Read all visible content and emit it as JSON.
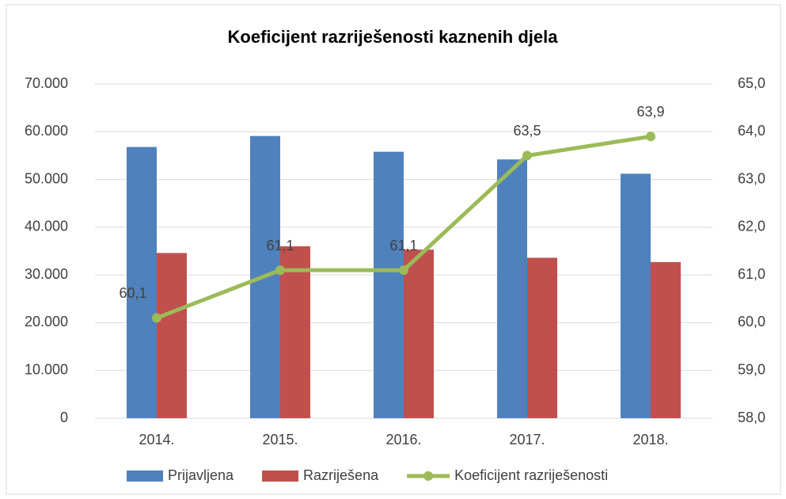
{
  "chart_data": {
    "type": "bar_line",
    "title": "Koeficijent razriješenosti kaznenih djela",
    "categories": [
      "2014.",
      "2015.",
      "2016.",
      "2017.",
      "2018."
    ],
    "series": [
      {
        "name": "Prijavljena",
        "color": "#4f81bd",
        "type": "bar",
        "values": [
          56800,
          59100,
          55800,
          54200,
          51200
        ]
      },
      {
        "name": "Razriješena",
        "color": "#c0504d",
        "type": "bar",
        "values": [
          34600,
          36000,
          35300,
          33600,
          32700
        ]
      },
      {
        "name": "Koeficijent razriješenosti",
        "color": "#9bbb59",
        "type": "line",
        "axis": "y2",
        "values": [
          60.1,
          61.1,
          61.1,
          63.5,
          63.9
        ],
        "value_labels": [
          "60,1",
          "61,1",
          "61,1",
          "63,5",
          "63,9"
        ]
      }
    ],
    "ylim": [
      0,
      70000
    ],
    "yticks": [
      0,
      {
        "value": 10000,
        "label": "10.000"
      },
      {
        "value": 20000,
        "label": "20.000"
      },
      {
        "value": 30000,
        "label": "30.000"
      },
      {
        "value": 40000,
        "label": "40.000"
      },
      {
        "value": 50000,
        "label": "50.000"
      },
      {
        "value": 60000,
        "label": "60.000"
      },
      {
        "value": 70000,
        "label": "70.000"
      }
    ],
    "y2lim": [
      58,
      65
    ],
    "y2ticks": [
      {
        "value": 58,
        "label": "58,0"
      },
      {
        "value": 59,
        "label": "59,0"
      },
      {
        "value": 60,
        "label": "60,0"
      },
      {
        "value": 61,
        "label": "61,0"
      },
      {
        "value": 62,
        "label": "62,0"
      },
      {
        "value": 63,
        "label": "63,0"
      },
      {
        "value": 64,
        "label": "64,0"
      },
      {
        "value": 65,
        "label": "65,0"
      }
    ],
    "grid": true,
    "legend": "bottom"
  }
}
